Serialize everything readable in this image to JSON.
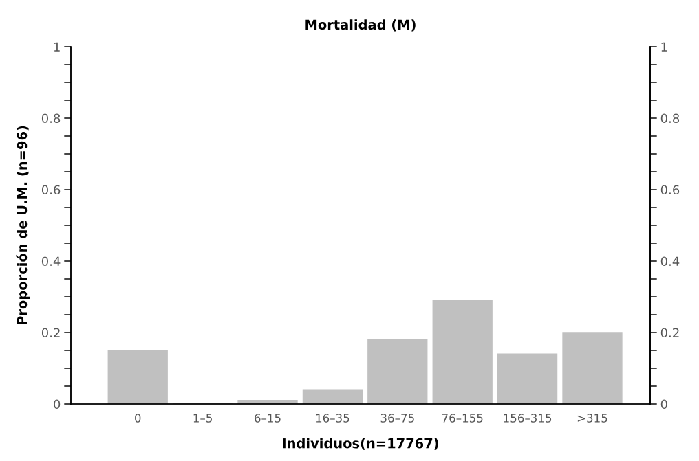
{
  "chart_data": {
    "type": "bar",
    "title": "Mortalidad (M)",
    "xlabel": "Individuos(n=17767)",
    "ylabel": "Proporción de U.M. (n=96)",
    "categories": [
      "0",
      "1–5",
      "6–15",
      "16–35",
      "36–75",
      "76–155",
      "156–315",
      ">315"
    ],
    "values": [
      0.15,
      0,
      0.01,
      0.04,
      0.18,
      0.29,
      0.14,
      0.2
    ],
    "color": "#c0c0c0",
    "ylim": [
      0,
      1
    ],
    "yticks": [
      0,
      {
        "value": 0.05,
        "label": null
      },
      {
        "value": 0.1,
        "label": null
      },
      {
        "value": 0.15,
        "label": null
      },
      0.2,
      {
        "value": 0.25,
        "label": null
      },
      {
        "value": 0.3,
        "label": null
      },
      {
        "value": 0.35,
        "label": null
      },
      0.4,
      {
        "value": 0.45,
        "label": null
      },
      {
        "value": 0.5,
        "label": null
      },
      {
        "value": 0.55,
        "label": null
      },
      0.6,
      {
        "value": 0.65,
        "label": null
      },
      {
        "value": 0.7,
        "label": null
      },
      {
        "value": 0.75,
        "label": null
      },
      0.8,
      {
        "value": 0.85,
        "label": null
      },
      {
        "value": 0.9,
        "label": null
      },
      {
        "value": 0.95,
        "label": null
      },
      1
    ],
    "y2lim": [
      0,
      1
    ],
    "y2ticks": [
      0,
      {
        "value": 0.05,
        "label": null
      },
      {
        "value": 0.1,
        "label": null
      },
      {
        "value": 0.15,
        "label": null
      },
      0.2,
      {
        "value": 0.25,
        "label": null
      },
      {
        "value": 0.3,
        "label": null
      },
      {
        "value": 0.35,
        "label": null
      },
      0.4,
      {
        "value": 0.45,
        "label": null
      },
      {
        "value": 0.5,
        "label": null
      },
      {
        "value": 0.55,
        "label": null
      },
      0.6,
      {
        "value": 0.65,
        "label": null
      },
      {
        "value": 0.7,
        "label": null
      },
      {
        "value": 0.75,
        "label": null
      },
      0.8,
      {
        "value": 0.85,
        "label": null
      },
      {
        "value": 0.9,
        "label": null
      },
      {
        "value": 0.95,
        "label": null
      },
      1
    ],
    "grid": false,
    "legend": false
  }
}
